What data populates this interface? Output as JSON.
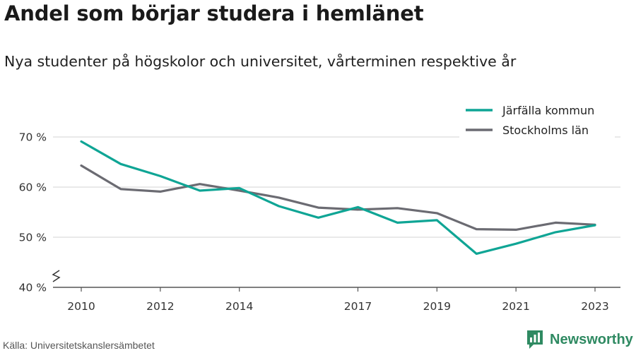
{
  "title": "Andel som börjar studera i hemlänet",
  "subtitle": "Nya studenter på högskolor och universitet, vårterminen respektive år",
  "source": "Källa: Universitetskanslersämbetet",
  "brand": {
    "name": "Newsworthy",
    "icon": "newsworthy-logo-icon",
    "color": "#2f8a62"
  },
  "chart_data": {
    "type": "line",
    "x_ticks": [
      2010,
      2012,
      2014,
      2017,
      2019,
      2021,
      2023
    ],
    "y_ticks": [
      {
        "value": 40,
        "label": "40 %"
      },
      {
        "value": 50,
        "label": "50 %"
      },
      {
        "value": 60,
        "label": "60 %"
      },
      {
        "value": 70,
        "label": "70 %"
      }
    ],
    "xlim": [
      2010,
      2023
    ],
    "ylim": [
      40,
      70
    ],
    "y_axis_break": true,
    "grid": true,
    "legend_position": "top-right",
    "series": [
      {
        "name": "Järfälla kommun",
        "color": "#0fa595",
        "x": [
          2010,
          2011,
          2012,
          2013,
          2014,
          2015,
          2016,
          2017,
          2018,
          2019,
          2020,
          2021,
          2022,
          2023
        ],
        "values": [
          69.1,
          64.6,
          62.2,
          59.3,
          59.8,
          56.2,
          53.9,
          56.0,
          52.9,
          53.4,
          46.7,
          48.7,
          51.0,
          52.4
        ]
      },
      {
        "name": "Stockholms län",
        "color": "#6b6b72",
        "x": [
          2010,
          2011,
          2012,
          2013,
          2014,
          2015,
          2016,
          2017,
          2018,
          2019,
          2020,
          2021,
          2022,
          2023
        ],
        "values": [
          64.3,
          59.6,
          59.1,
          60.6,
          59.3,
          57.9,
          55.9,
          55.5,
          55.8,
          54.8,
          51.6,
          51.5,
          52.9,
          52.5
        ]
      }
    ]
  }
}
